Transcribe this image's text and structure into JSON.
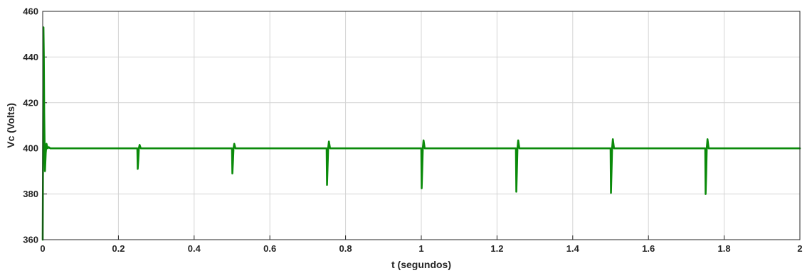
{
  "chart_data": {
    "type": "line",
    "title": "",
    "xlabel": "t (segundos)",
    "ylabel": "Vc (Volts)",
    "xlim": [
      0,
      2
    ],
    "ylim": [
      360,
      460
    ],
    "xticks": [
      0,
      0.2,
      0.4,
      0.6,
      0.8,
      1,
      1.2,
      1.4,
      1.6,
      1.8,
      2
    ],
    "xtick_labels": [
      "0",
      "0.2",
      "0.4",
      "0.6",
      "0.8",
      "1",
      "1.2",
      "1.4",
      "1.6",
      "1.8",
      "2"
    ],
    "yticks": [
      360,
      380,
      400,
      420,
      440,
      460
    ],
    "ytick_labels": [
      "360",
      "380",
      "400",
      "420",
      "440",
      "460"
    ],
    "grid": true,
    "legend": false,
    "line_color": "#0a8a0a",
    "series": [
      {
        "x": [
          0,
          0.001,
          0.002,
          0.003,
          0.004,
          0.006,
          0.008,
          0.01,
          0.013,
          0.016,
          0.02,
          0.25,
          0.251,
          0.2525,
          0.254,
          0.256,
          0.259,
          0.262,
          0.5,
          0.501,
          0.5025,
          0.504,
          0.506,
          0.509,
          0.512,
          0.75,
          0.751,
          0.7525,
          0.754,
          0.756,
          0.759,
          0.762,
          1.0,
          1.001,
          1.0025,
          1.004,
          1.006,
          1.009,
          1.012,
          1.25,
          1.251,
          1.2525,
          1.254,
          1.256,
          1.259,
          1.262,
          1.5,
          1.501,
          1.5025,
          1.504,
          1.506,
          1.509,
          1.512,
          1.75,
          1.751,
          1.7525,
          1.754,
          1.756,
          1.759,
          1.762,
          2.0
        ],
        "y": [
          360,
          400,
          453,
          440,
          415,
          390,
          398,
          402,
          400,
          400.5,
          400,
          400,
          391,
          395,
          400,
          401.5,
          400,
          400,
          400,
          389,
          394,
          400,
          402,
          400,
          400,
          400,
          384,
          392,
          400,
          403,
          400,
          400,
          400,
          382.5,
          391,
          400,
          403.5,
          400,
          400,
          400,
          381,
          390,
          400,
          403.5,
          400,
          400,
          400,
          380.5,
          390,
          400,
          404,
          400,
          400,
          400,
          380,
          389,
          400,
          404,
          400,
          400,
          400
        ]
      }
    ]
  }
}
